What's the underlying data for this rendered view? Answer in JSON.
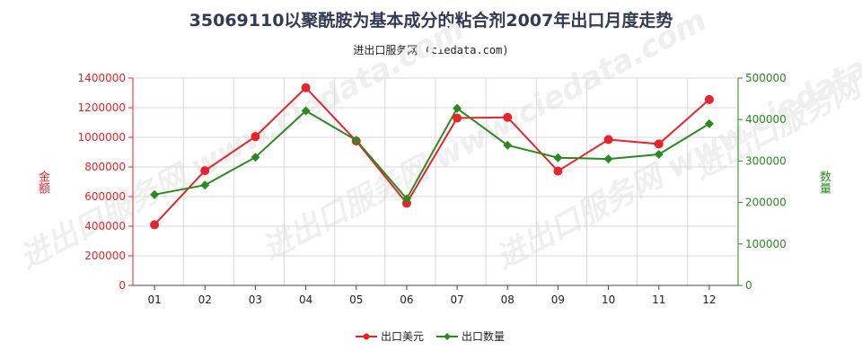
{
  "title": "35069110以聚酰胺为基本成分的粘合剂2007年出口月度走势",
  "subtitle": "进出口服务网 (ciedata.com)",
  "watermark": "进出口服务网 www.ciedata.com",
  "y_left_label": "金额",
  "y_right_label": "数量",
  "colors": {
    "usd": "#e8232a",
    "qty": "#2a8a1f",
    "grid": "#d9d9d9"
  },
  "chart_data": {
    "type": "line",
    "categories": [
      "01",
      "02",
      "03",
      "04",
      "05",
      "06",
      "07",
      "08",
      "09",
      "10",
      "11",
      "12"
    ],
    "y_left": {
      "label": "金额",
      "ylim": [
        0,
        1400000
      ],
      "ticks": [
        "0",
        "200000",
        "400000",
        "600000",
        "800000",
        "1000000",
        "1200000",
        "1400000"
      ]
    },
    "y_right": {
      "label": "数量",
      "ylim": [
        0,
        500000
      ],
      "ticks": [
        "0",
        "100000",
        "200000",
        "300000",
        "400000",
        "500000"
      ]
    },
    "series": [
      {
        "name": "出口美元",
        "axis": "left",
        "values": [
          410000,
          775000,
          1005000,
          1335000,
          975000,
          555000,
          1130000,
          1135000,
          772000,
          985000,
          955000,
          1255000
        ]
      },
      {
        "name": "出口数量",
        "axis": "right",
        "values": [
          219000,
          242000,
          309000,
          421000,
          350000,
          209000,
          427000,
          338000,
          308000,
          305000,
          316000,
          390000
        ]
      }
    ],
    "grid": true,
    "legend": "bottom-center"
  }
}
